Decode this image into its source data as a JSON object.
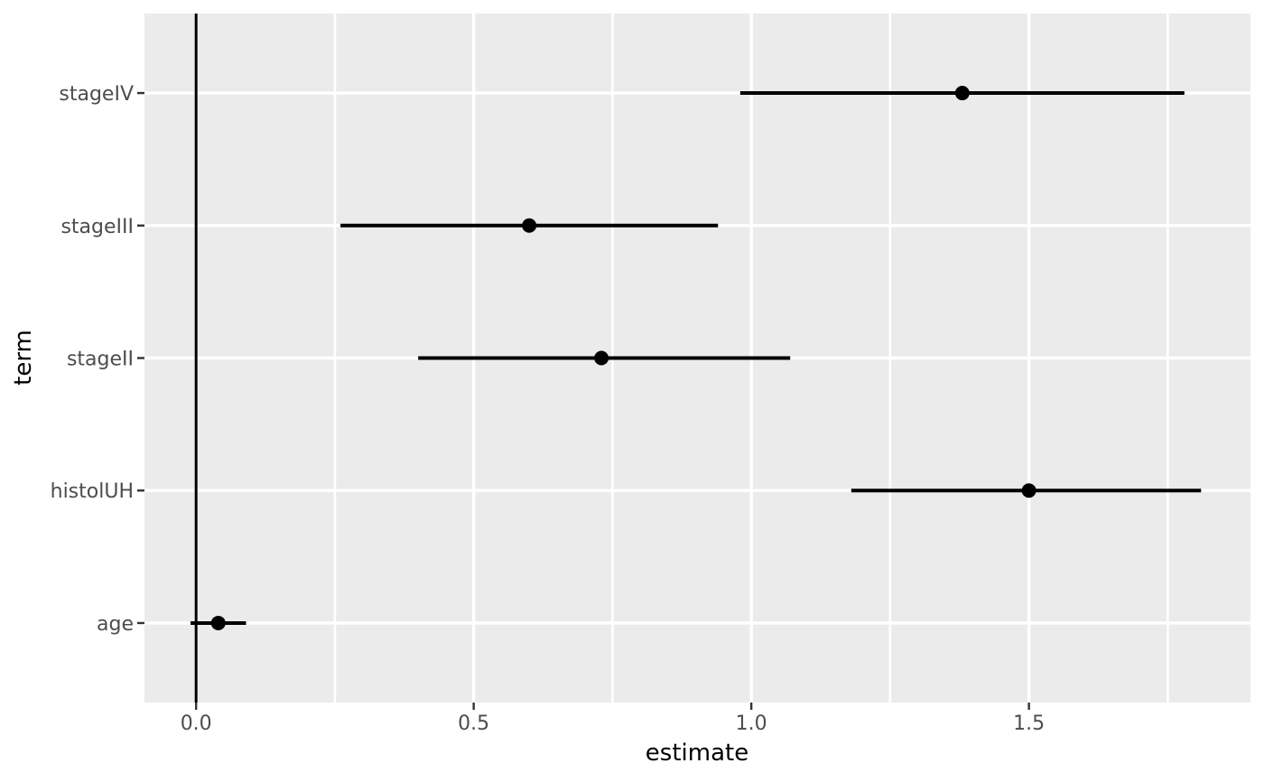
{
  "chart_data": {
    "type": "pointrange",
    "title": "",
    "xlabel": "estimate",
    "ylabel": "term",
    "categories": [
      "stageIV",
      "stageIII",
      "stageII",
      "histolUH",
      "age"
    ],
    "series": [
      {
        "term": "stageIV",
        "estimate": 1.38,
        "conf_low": 0.98,
        "conf_high": 1.78
      },
      {
        "term": "stageIII",
        "estimate": 0.6,
        "conf_low": 0.26,
        "conf_high": 0.94
      },
      {
        "term": "stageII",
        "estimate": 0.73,
        "conf_low": 0.4,
        "conf_high": 1.07
      },
      {
        "term": "histolUH",
        "estimate": 1.5,
        "conf_low": 1.18,
        "conf_high": 1.81
      },
      {
        "term": "age",
        "estimate": 0.04,
        "conf_low": -0.01,
        "conf_high": 0.09
      }
    ],
    "x_tick_labels": [
      "0.0",
      "0.5",
      "1.0",
      "1.5"
    ],
    "x_tick_values": [
      0.0,
      0.5,
      1.0,
      1.5
    ],
    "x_minor_values": [
      0.25,
      0.75,
      1.25,
      1.75
    ],
    "xlim": [
      -0.093,
      1.899
    ],
    "reference_line_x": 0,
    "grid": "on",
    "legend_position": "none",
    "theme": {
      "background": "#FFFFFF",
      "panel_bg": "#EBEBEB",
      "grid_major": "#FFFFFF",
      "grid_minor": "#FFFFFF",
      "point_color": "#000000",
      "line_color": "#000000",
      "ref_line_color": "#000000",
      "tick_color": "#333333",
      "axis_text": "#4D4D4D",
      "axis_title": "#000000"
    }
  }
}
